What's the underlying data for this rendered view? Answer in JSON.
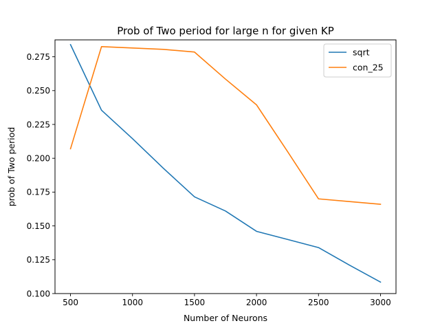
{
  "chart_data": {
    "type": "line",
    "title": "Prob of Two period for large n for given KP",
    "xlabel": "Number of Neurons",
    "ylabel": "prob of Two period",
    "xlim": [
      375,
      3125
    ],
    "ylim": [
      0.1,
      0.2875
    ],
    "xticks": [
      500,
      1000,
      1500,
      2000,
      2500,
      3000
    ],
    "yticks": [
      "0.100",
      "0.125",
      "0.150",
      "0.175",
      "0.200",
      "0.225",
      "0.250",
      "0.275"
    ],
    "legend_position": "upper right",
    "grid": false,
    "series": [
      {
        "name": "sqrt",
        "color": "#1f77b4",
        "x": [
          500,
          750,
          1000,
          1250,
          1500,
          1750,
          2000,
          2250,
          2500,
          2750,
          3000
        ],
        "y": [
          0.284,
          0.2355,
          0.2145,
          0.1925,
          0.1715,
          0.161,
          0.146,
          0.14,
          0.134,
          0.121,
          0.1085
        ]
      },
      {
        "name": "con_25",
        "color": "#ff7f0e",
        "x": [
          500,
          750,
          1000,
          1250,
          1500,
          1750,
          2000,
          2250,
          2500,
          2750,
          3000
        ],
        "y": [
          0.207,
          0.2825,
          0.2815,
          0.2805,
          0.2785,
          0.2585,
          0.2395,
          0.205,
          0.17,
          0.168,
          0.166
        ]
      }
    ]
  }
}
